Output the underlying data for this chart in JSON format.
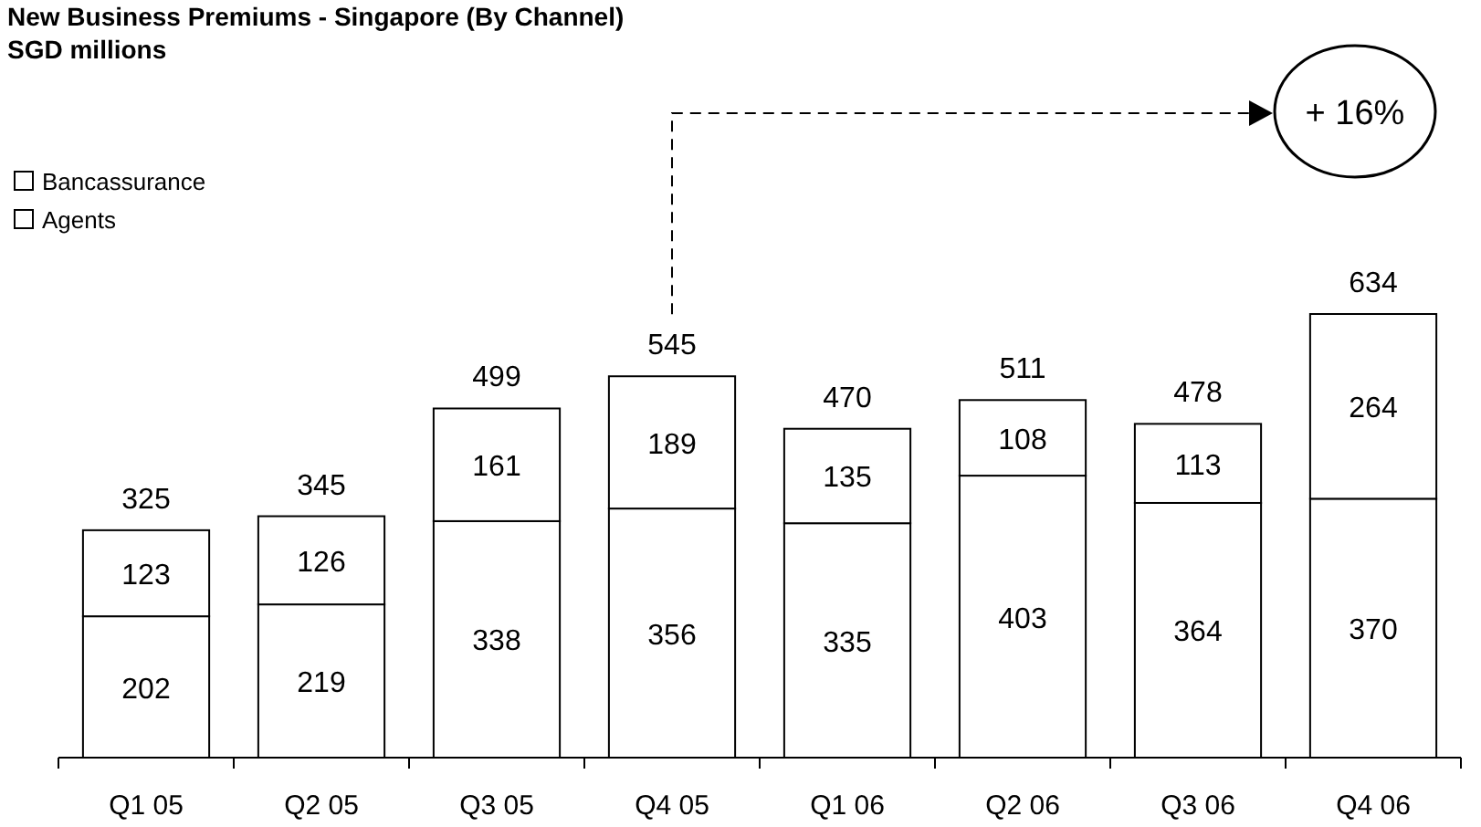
{
  "chart_data": {
    "type": "bar",
    "title": "New Business Premiums - Singapore (By Channel)",
    "subtitle": "SGD millions",
    "categories": [
      "Q1 05",
      "Q2 05",
      "Q3 05",
      "Q4 05",
      "Q1 06",
      "Q2 06",
      "Q3 06",
      "Q4 06"
    ],
    "stacked": true,
    "series": [
      {
        "name": "Agents",
        "color": "#ffffff",
        "values": [
          202,
          219,
          338,
          356,
          335,
          403,
          364,
          370
        ]
      },
      {
        "name": "Bancassurance",
        "color": "#ffffff",
        "values": [
          123,
          126,
          161,
          189,
          135,
          108,
          113,
          264
        ]
      }
    ],
    "totals": [
      "325",
      "345",
      "499",
      "545",
      "470",
      "511",
      "478",
      "634"
    ],
    "data_labels": true,
    "legend": "top left",
    "annotations": [
      "+ 16%"
    ]
  }
}
